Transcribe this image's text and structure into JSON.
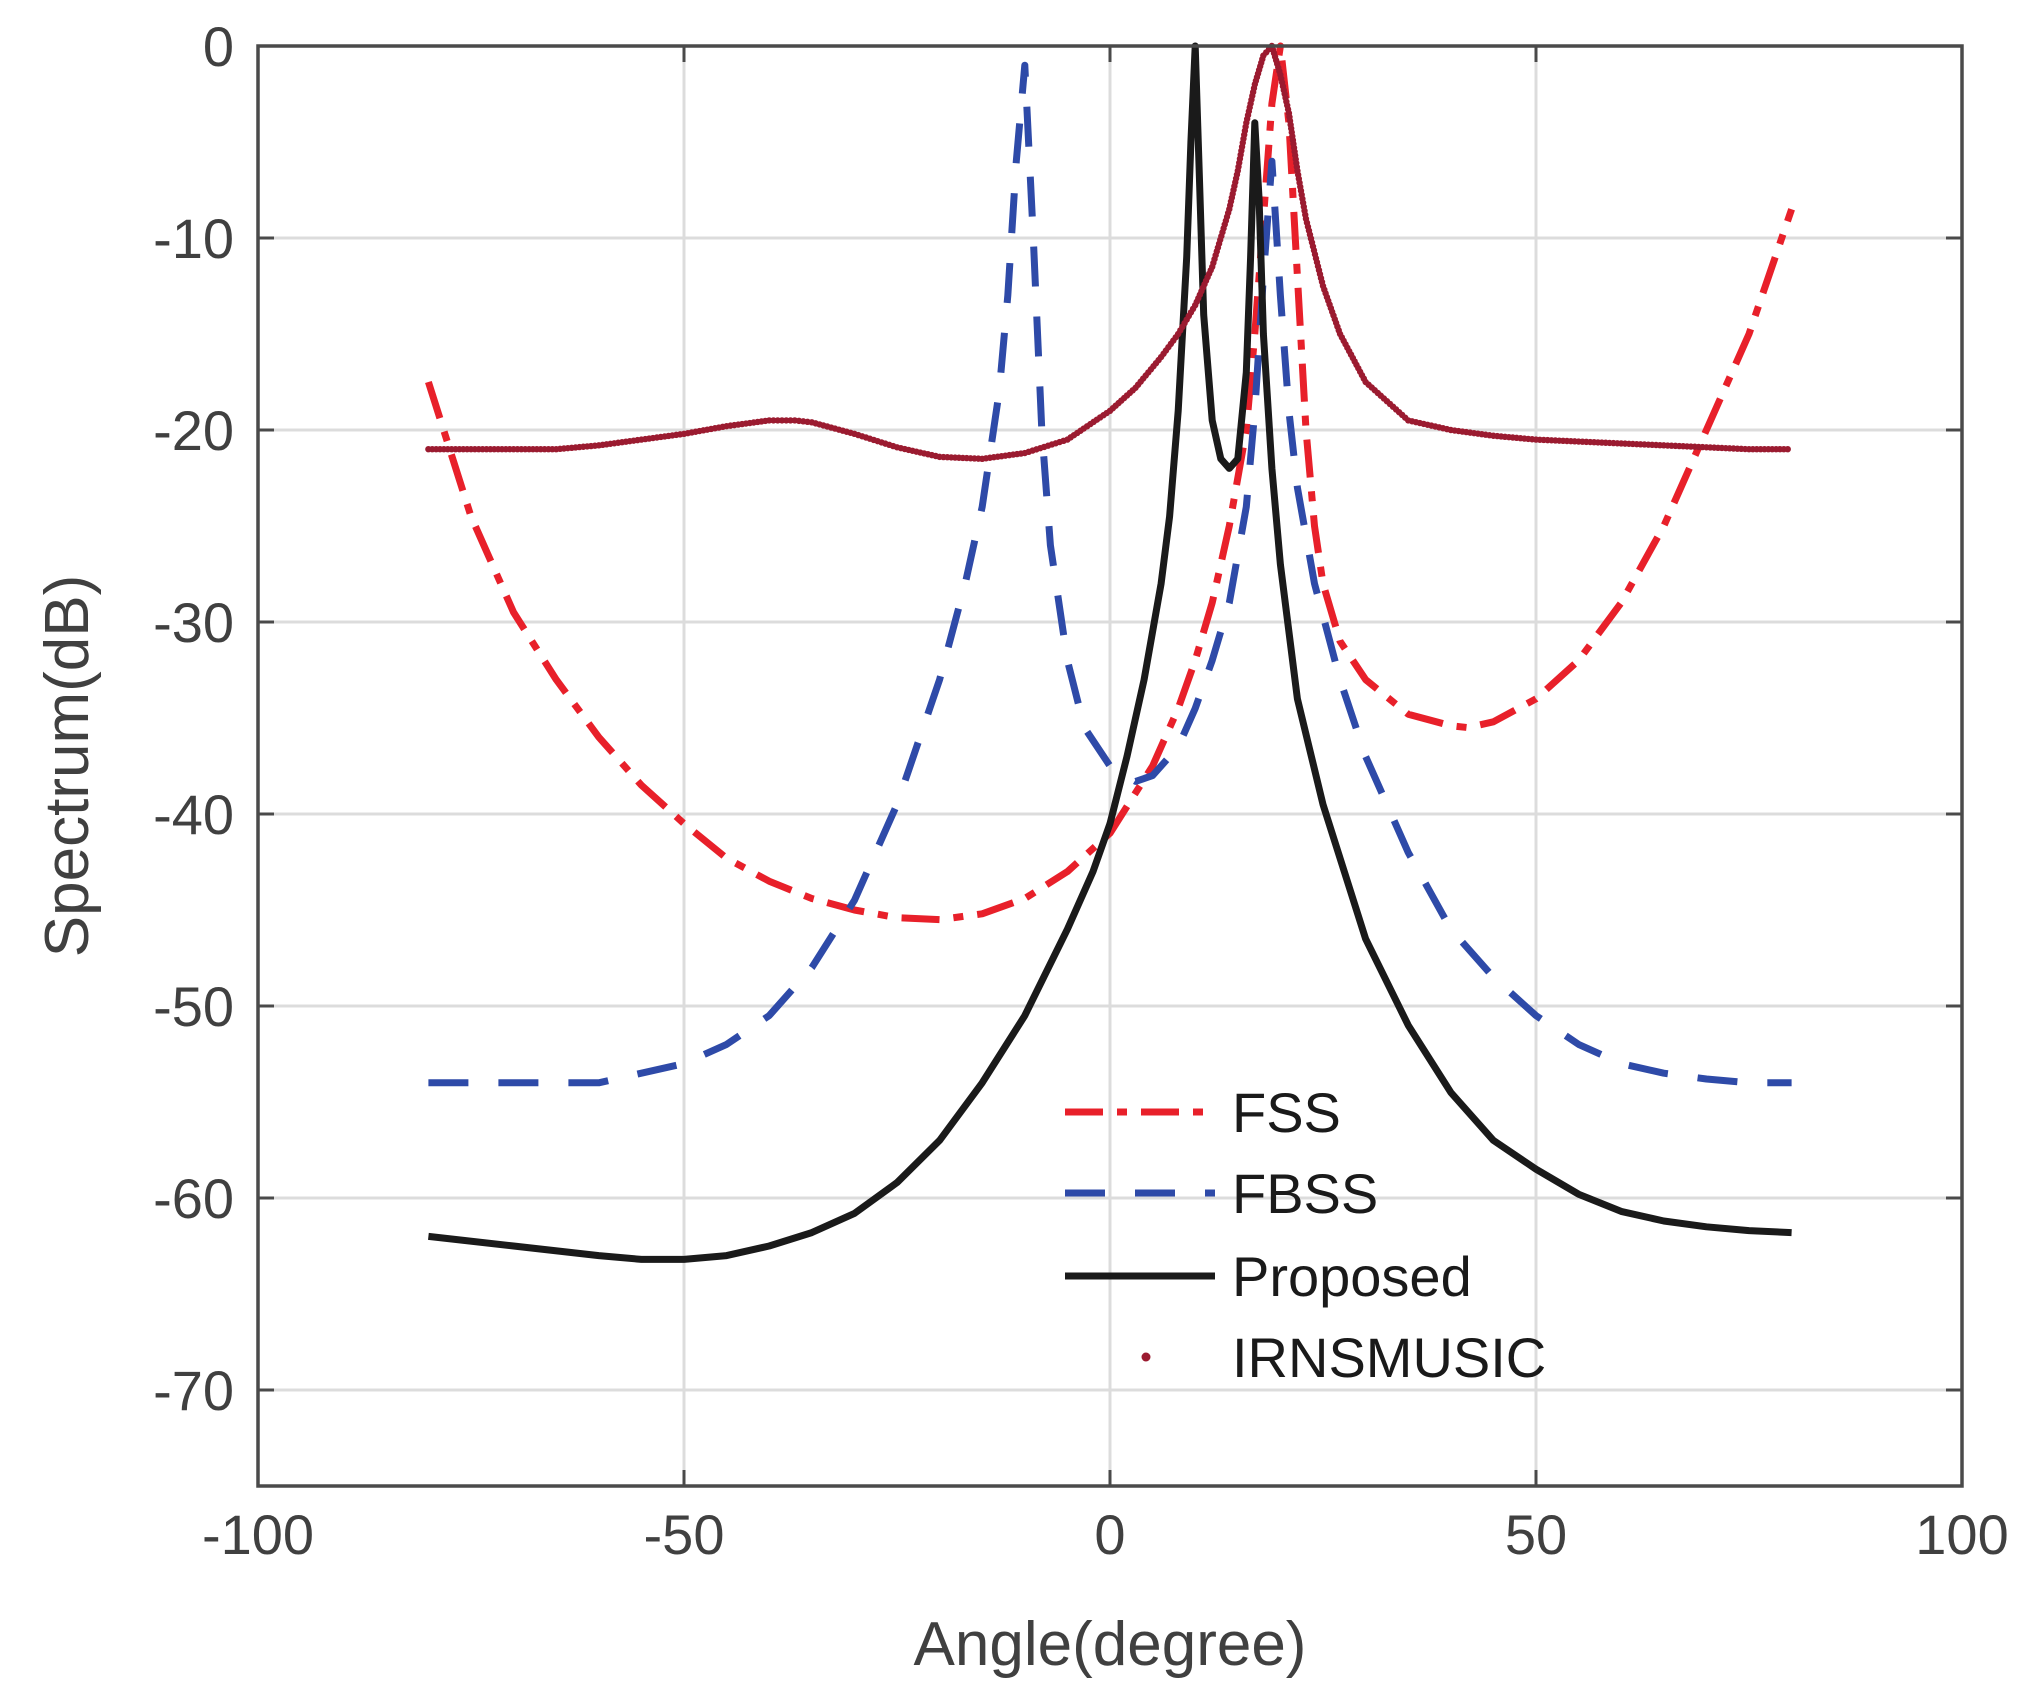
{
  "chart_data": {
    "type": "line",
    "title": "",
    "xlabel": "Angle(degree)",
    "ylabel": "Spectrum(dB)",
    "xlim": [
      -100,
      100
    ],
    "ylim": [
      -75,
      0
    ],
    "xticks": [
      -100,
      -50,
      0,
      50,
      100
    ],
    "yticks": [
      0,
      -10,
      -20,
      -30,
      -40,
      -50,
      -60,
      -70
    ],
    "xtick_labels": [
      "-100",
      "-50",
      "0",
      "50",
      "100"
    ],
    "ytick_labels": [
      "0",
      "-10",
      "-20",
      "-30",
      "-40",
      "-50",
      "-60",
      "-70"
    ],
    "grid": true,
    "legend_position": "lower-center",
    "series": [
      {
        "name": "FSS",
        "style": "dashdot",
        "color": "#e8202a",
        "x": [
          -80,
          -75,
          -70,
          -65,
          -60,
          -55,
          -50,
          -45,
          -40,
          -35,
          -30,
          -25,
          -20,
          -15,
          -10,
          -5,
          0,
          5,
          8,
          10,
          12,
          14,
          16,
          17,
          18,
          19,
          20,
          21,
          22,
          23,
          24,
          25,
          27,
          30,
          35,
          40,
          42,
          45,
          50,
          55,
          60,
          65,
          70,
          75,
          80
        ],
        "values": [
          -17.5,
          -24.5,
          -29.5,
          -33,
          -36,
          -38.5,
          -40.5,
          -42.3,
          -43.5,
          -44.4,
          -45,
          -45.4,
          -45.5,
          -45.2,
          -44.4,
          -43,
          -41,
          -37.5,
          -34.5,
          -32,
          -29,
          -25,
          -20,
          -15,
          -9,
          -3,
          0,
          -4,
          -12,
          -20,
          -25,
          -28,
          -31,
          -33,
          -34.8,
          -35.4,
          -35.5,
          -35.2,
          -34,
          -32,
          -29,
          -25,
          -20,
          -15,
          -8.5
        ]
      },
      {
        "name": "FBSS",
        "style": "dashed",
        "color": "#2e4aa8",
        "x": [
          -80,
          -70,
          -60,
          -55,
          -50,
          -45,
          -40,
          -35,
          -30,
          -25,
          -20,
          -17,
          -15,
          -13,
          -12,
          -11,
          -10,
          -9,
          -8,
          -7,
          -5,
          -3,
          0,
          3,
          5,
          8,
          10,
          12,
          14,
          16,
          17,
          18,
          19,
          20,
          21,
          22,
          24,
          27,
          30,
          35,
          40,
          45,
          50,
          55,
          60,
          65,
          70,
          75,
          80
        ],
        "values": [
          -54,
          -54,
          -54,
          -53.5,
          -53,
          -52,
          -50.5,
          -48,
          -44.5,
          -39.5,
          -33,
          -28,
          -24,
          -18,
          -13,
          -6,
          -1,
          -10,
          -20,
          -26,
          -32,
          -35.5,
          -37.5,
          -38.3,
          -38,
          -36.5,
          -34.5,
          -32,
          -29,
          -24,
          -19,
          -12,
          -6,
          -13,
          -19,
          -23,
          -28,
          -33,
          -37,
          -42,
          -46,
          -48.5,
          -50.5,
          -52,
          -53,
          -53.5,
          -53.8,
          -54,
          -54
        ]
      },
      {
        "name": "Proposed",
        "style": "solid",
        "color": "#1a1a1a",
        "x": [
          -80,
          -70,
          -60,
          -55,
          -50,
          -45,
          -40,
          -35,
          -30,
          -25,
          -20,
          -15,
          -10,
          -5,
          -2,
          0,
          2,
          4,
          6,
          7,
          8,
          9,
          9.5,
          10,
          10.5,
          11,
          12,
          13,
          14,
          15,
          16,
          16.5,
          17,
          17.5,
          18,
          19,
          20,
          22,
          25,
          30,
          35,
          40,
          45,
          50,
          55,
          60,
          65,
          70,
          75,
          80
        ],
        "values": [
          -62,
          -62.5,
          -63,
          -63.2,
          -63.2,
          -63,
          -62.5,
          -61.8,
          -60.8,
          -59.2,
          -57,
          -54,
          -50.5,
          -46,
          -43,
          -40.5,
          -37,
          -33,
          -28,
          -24.5,
          -19,
          -11,
          -5,
          0,
          -7,
          -14,
          -19.5,
          -21.5,
          -22,
          -21.5,
          -17,
          -11,
          -4,
          -8,
          -15,
          -22,
          -27,
          -34,
          -39.5,
          -46.5,
          -51,
          -54.5,
          -57,
          -58.5,
          -59.8,
          -60.7,
          -61.2,
          -61.5,
          -61.7,
          -61.8
        ]
      },
      {
        "name": "IRNSMUSIC",
        "style": "dotted",
        "color": "#9b1b30",
        "x": [
          -80,
          -75,
          -70,
          -65,
          -60,
          -55,
          -50,
          -45,
          -40,
          -37,
          -35,
          -30,
          -25,
          -20,
          -15,
          -10,
          -5,
          0,
          3,
          6,
          8,
          10,
          12,
          14,
          15,
          16,
          17,
          18,
          19,
          20,
          21,
          22,
          23,
          25,
          27,
          30,
          35,
          40,
          45,
          50,
          55,
          60,
          65,
          70,
          75,
          80
        ],
        "values": [
          -21,
          -21,
          -21,
          -21,
          -20.8,
          -20.5,
          -20.2,
          -19.8,
          -19.5,
          -19.5,
          -19.6,
          -20.2,
          -20.9,
          -21.4,
          -21.5,
          -21.2,
          -20.5,
          -19,
          -17.8,
          -16.2,
          -15,
          -13.5,
          -11.5,
          -8.5,
          -6.5,
          -4,
          -2,
          -0.5,
          0,
          -1.5,
          -3.5,
          -6.5,
          -9,
          -12.5,
          -15,
          -17.5,
          -19.5,
          -20,
          -20.3,
          -20.5,
          -20.6,
          -20.7,
          -20.8,
          -20.9,
          -21,
          -21
        ]
      }
    ]
  }
}
